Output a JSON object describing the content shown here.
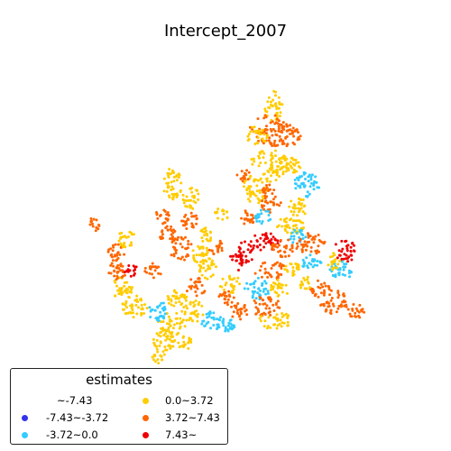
{
  "title": "Intercept_2007",
  "legend": {
    "title": "estimates",
    "entries": [
      {
        "label": "~-7.43",
        "color": "#ffffff"
      },
      {
        "label": "-7.43~-3.72",
        "color": "#3333ee"
      },
      {
        "label": "-3.72~0.0",
        "color": "#33ccff"
      },
      {
        "label": "0.0~3.72",
        "color": "#ffcc00"
      },
      {
        "label": "3.72~7.43",
        "color": "#ff6600"
      },
      {
        "label": "7.43~",
        "color": "#ee0000"
      }
    ]
  },
  "map_data": {
    "type": "point-map",
    "class_breaks": [
      -7.43,
      -3.72,
      0.0,
      3.72,
      7.43
    ],
    "dominant_classes": [
      "0.0~3.72",
      "3.72~7.43",
      "-3.72~0.0",
      "7.43~"
    ]
  }
}
